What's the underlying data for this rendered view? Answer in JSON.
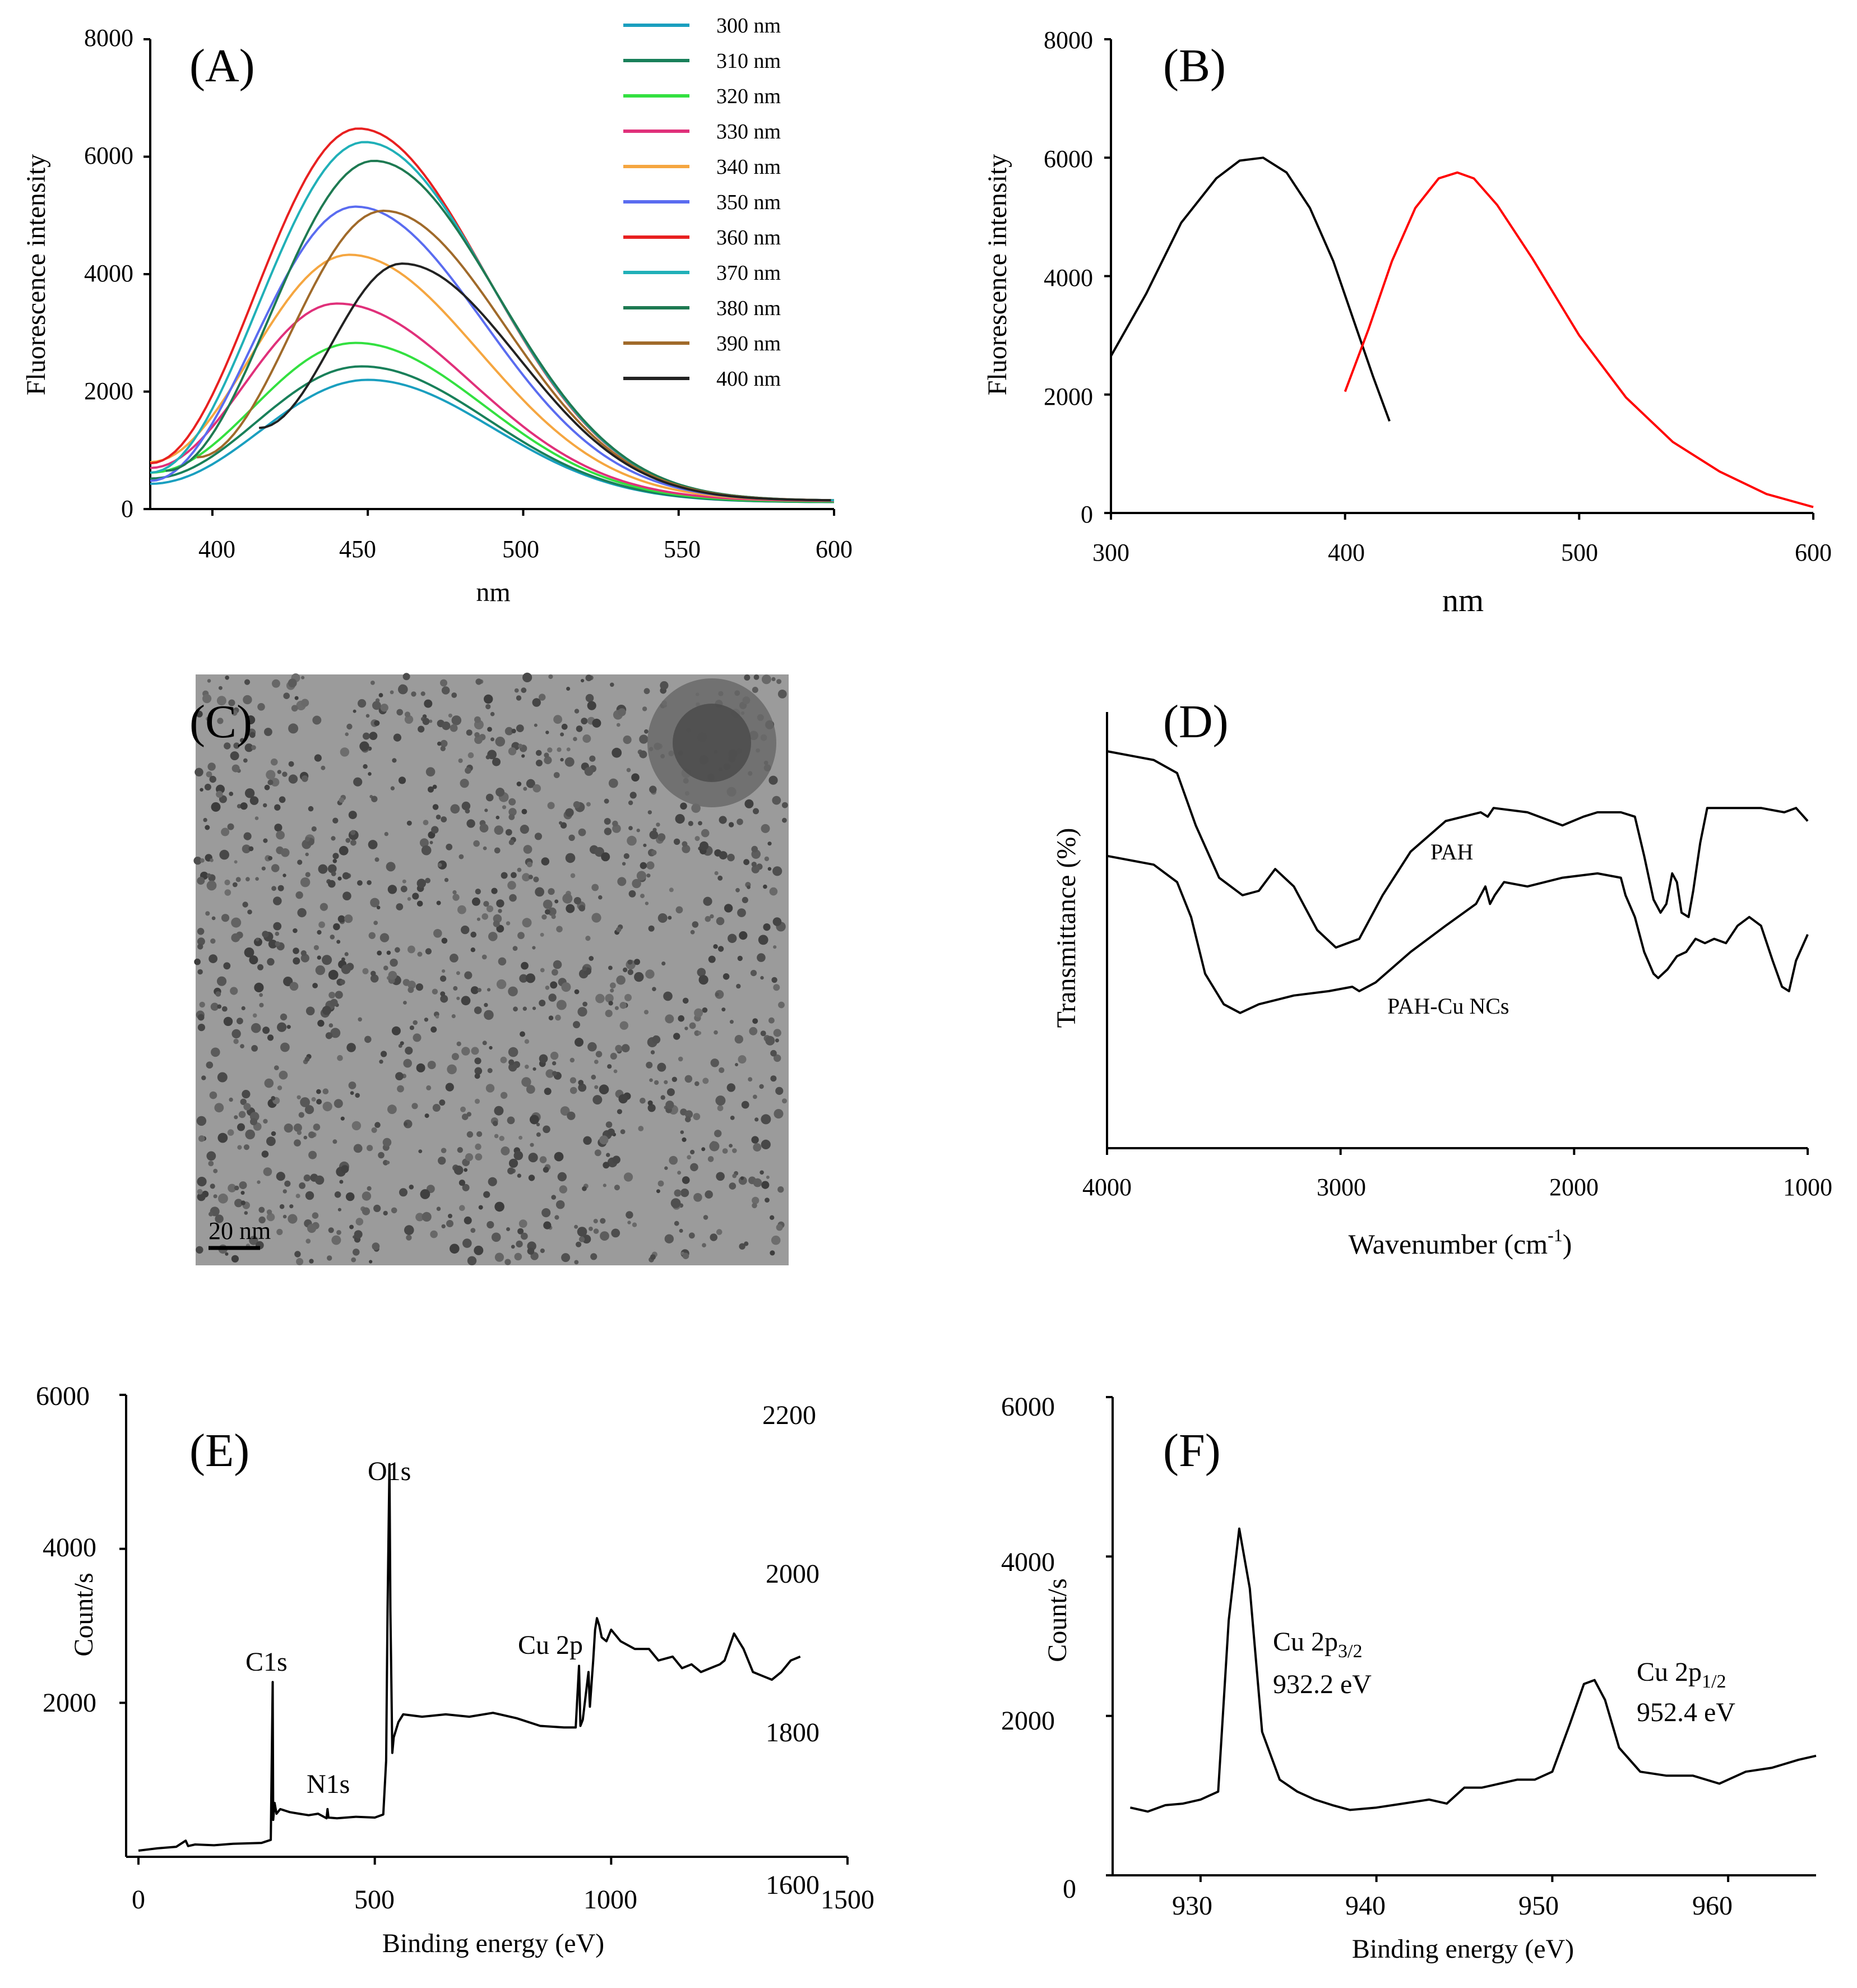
{
  "chart_data": [
    {
      "panel": "A",
      "type": "line",
      "xlabel": "nm",
      "ylabel": "Fluorescence intensity",
      "xlim": [
        380,
        600
      ],
      "ylim": [
        0,
        8000
      ],
      "x_ticks": [
        "400",
        "450",
        "500",
        "550",
        "600"
      ],
      "y_ticks": [
        "0",
        "2000",
        "4000",
        "6000",
        "8000"
      ],
      "legend_position": "top-right",
      "series": [
        {
          "name": "300 nm",
          "color": "#1a9fbf",
          "peak_x": 450,
          "peak_y": 2200,
          "start_x": 380,
          "start_y": 430,
          "end_y": 120
        },
        {
          "name": "310 nm",
          "color": "#19805a",
          "peak_x": 448,
          "peak_y": 2430,
          "start_x": 380,
          "start_y": 520,
          "end_y": 120
        },
        {
          "name": "320 nm",
          "color": "#33e040",
          "peak_x": 446,
          "peak_y": 2830,
          "start_x": 380,
          "start_y": 620,
          "end_y": 130
        },
        {
          "name": "330 nm",
          "color": "#e0307a",
          "peak_x": 440,
          "peak_y": 3500,
          "start_x": 380,
          "start_y": 700,
          "end_y": 140
        },
        {
          "name": "340 nm",
          "color": "#f5a640",
          "peak_x": 444,
          "peak_y": 4330,
          "start_x": 380,
          "start_y": 800,
          "end_y": 150
        },
        {
          "name": "350 nm",
          "color": "#5a6cf0",
          "peak_x": 446,
          "peak_y": 5150,
          "start_x": 380,
          "start_y": 480,
          "end_y": 150
        },
        {
          "name": "360 nm",
          "color": "#e82020",
          "peak_x": 447,
          "peak_y": 6480,
          "start_x": 380,
          "start_y": 780,
          "end_y": 150
        },
        {
          "name": "370 nm",
          "color": "#20b0b8",
          "peak_x": 449,
          "peak_y": 6250,
          "start_x": 380,
          "start_y": 620,
          "end_y": 150
        },
        {
          "name": "380 nm",
          "color": "#1e7a52",
          "peak_x": 452,
          "peak_y": 5930,
          "start_x": 385,
          "start_y": 650,
          "end_y": 150
        },
        {
          "name": "390 nm",
          "color": "#a06a2a",
          "peak_x": 455,
          "peak_y": 5080,
          "start_x": 395,
          "start_y": 880,
          "end_y": 150
        },
        {
          "name": "400 nm",
          "color": "#222222",
          "peak_x": 461,
          "peak_y": 4180,
          "start_x": 415,
          "start_y": 1380,
          "end_y": 150
        }
      ]
    },
    {
      "panel": "B",
      "type": "line",
      "xlabel": "nm",
      "ylabel": "Fluorescence intensity",
      "xlim": [
        300,
        600
      ],
      "ylim": [
        0,
        8000
      ],
      "x_ticks": [
        "300",
        "400",
        "500",
        "600"
      ],
      "y_ticks": [
        "0",
        "2000",
        "4000",
        "6000",
        "8000"
      ],
      "series": [
        {
          "color": "#000000",
          "x": [
            300,
            315,
            330,
            345,
            355,
            365,
            375,
            385,
            395,
            405,
            412,
            419
          ],
          "y": [
            2650,
            3700,
            4900,
            5650,
            5950,
            6000,
            5750,
            5150,
            4250,
            3100,
            2300,
            1550
          ]
        },
        {
          "color": "#ff0000",
          "x": [
            400,
            410,
            420,
            430,
            440,
            448,
            455,
            465,
            480,
            500,
            520,
            540,
            560,
            580,
            600
          ],
          "y": [
            2050,
            3100,
            4250,
            5150,
            5650,
            5750,
            5650,
            5200,
            4300,
            3000,
            1950,
            1200,
            700,
            320,
            100
          ]
        }
      ]
    },
    {
      "panel": "D",
      "type": "line",
      "xlabel": "Wavenumber (cm-1)",
      "ylabel": "Transmittance (%)",
      "x_reversed": true,
      "xlim": [
        1000,
        4000
      ],
      "ylim": [
        0,
        100
      ],
      "x_ticks": [
        "4000",
        "3000",
        "2000",
        "1000"
      ],
      "annotations": [
        "PAH",
        "PAH-Cu NCs"
      ],
      "series": [
        {
          "name": "PAH",
          "x": [
            4000,
            3800,
            3700,
            3620,
            3520,
            3420,
            3350,
            3280,
            3200,
            3100,
            3020,
            2920,
            2820,
            2700,
            2550,
            2400,
            2370,
            2345,
            2200,
            2050,
            1960,
            1900,
            1800,
            1740,
            1700,
            1660,
            1630,
            1605,
            1580,
            1560,
            1540,
            1510,
            1490,
            1460,
            1430,
            1300,
            1200,
            1100,
            1050,
            1000
          ],
          "y": [
            91,
            89,
            86,
            74,
            62,
            58,
            59,
            64,
            60,
            50,
            46,
            48,
            58,
            68,
            75,
            77,
            76,
            78,
            77,
            74,
            76,
            77,
            77,
            76,
            67,
            57,
            54,
            56,
            63,
            61,
            54,
            53,
            59,
            70,
            78,
            78,
            78,
            77,
            78,
            75
          ]
        },
        {
          "name": "PAH-Cu NCs",
          "x": [
            4000,
            3800,
            3700,
            3640,
            3580,
            3500,
            3430,
            3350,
            3200,
            3050,
            2950,
            2920,
            2850,
            2700,
            2550,
            2420,
            2380,
            2360,
            2340,
            2300,
            2200,
            2050,
            1900,
            1800,
            1780,
            1740,
            1700,
            1660,
            1640,
            1600,
            1560,
            1520,
            1480,
            1440,
            1400,
            1350,
            1300,
            1250,
            1200,
            1150,
            1110,
            1080,
            1050,
            1000
          ],
          "y": [
            67,
            65,
            61,
            53,
            40,
            33,
            31,
            33,
            35,
            36,
            37,
            36,
            38,
            45,
            51,
            56,
            60,
            56,
            58,
            61,
            60,
            62,
            63,
            62,
            58,
            53,
            45,
            40,
            39,
            41,
            44,
            45,
            48,
            47,
            48,
            47,
            51,
            53,
            51,
            43,
            37,
            36,
            43,
            49
          ]
        }
      ]
    },
    {
      "panel": "E",
      "type": "line",
      "xlabel": "Binding energy (eV)",
      "ylabel": "Count/s",
      "xlim": [
        0,
        1500
      ],
      "ylim": [
        0,
        6000
      ],
      "x_ticks": [
        "0",
        "500",
        "1000",
        "1500"
      ],
      "y_ticks": [
        "2000",
        "4000",
        "6000"
      ],
      "secondary_y_ticks": [
        "2200",
        "2000",
        "1800",
        "1600"
      ],
      "annotations": [
        "C1s",
        "N1s",
        "O1s",
        "Cu 2p"
      ],
      "series": [
        {
          "x": [
            0,
            40,
            80,
            100,
            105,
            120,
            160,
            200,
            260,
            280,
            284,
            285,
            288,
            292,
            300,
            320,
            340,
            360,
            380,
            398,
            400,
            402,
            420,
            460,
            500,
            518,
            524,
            527,
            531,
            533,
            537,
            540,
            550,
            560,
            600,
            650,
            700,
            750,
            800,
            850,
            900,
            925,
            932,
            935,
            940,
            952,
            955,
            962,
            966,
            970,
            975,
            980,
            990,
            1000,
            1020,
            1050,
            1080,
            1100,
            1130,
            1150,
            1170,
            1190,
            1210,
            1230,
            1240,
            1260,
            1280,
            1300,
            1320,
            1340,
            1360,
            1380,
            1400
          ],
          "y": [
            80,
            110,
            130,
            210,
            140,
            160,
            150,
            170,
            180,
            220,
            2270,
            480,
            700,
            560,
            620,
            580,
            560,
            540,
            560,
            500,
            620,
            510,
            500,
            520,
            510,
            550,
            1250,
            3200,
            5100,
            3200,
            1350,
            1550,
            1750,
            1850,
            1820,
            1850,
            1820,
            1870,
            1800,
            1700,
            1680,
            1680,
            2480,
            1700,
            1780,
            2400,
            1950,
            2550,
            2950,
            3100,
            3000,
            2850,
            2800,
            2950,
            2800,
            2700,
            2700,
            2550,
            2600,
            2450,
            2500,
            2400,
            2450,
            2500,
            2550,
            2900,
            2700,
            2400,
            2350,
            2300,
            2400,
            2550,
            2600
          ]
        }
      ]
    },
    {
      "panel": "F",
      "type": "line",
      "xlabel": "Binding energy (eV)",
      "ylabel": "Count/s",
      "xlim": [
        925,
        965
      ],
      "ylim": [
        0,
        6000
      ],
      "x_ticks": [
        "930",
        "940",
        "950",
        "960"
      ],
      "y_ticks": [
        "0",
        "2000",
        "4000",
        "6000"
      ],
      "annotations": [
        "Cu 2p3/2",
        "932.2 eV",
        "Cu 2p1/2",
        "952.4 eV"
      ],
      "series": [
        {
          "x": [
            926,
            927,
            928,
            929,
            930,
            931,
            931.6,
            932.2,
            932.8,
            933.5,
            934.5,
            935.5,
            936.5,
            937.5,
            938.5,
            940,
            941.5,
            943,
            944,
            945,
            946,
            947,
            948,
            949,
            950,
            951,
            951.8,
            952.4,
            953,
            953.8,
            955,
            956.5,
            958,
            959.5,
            961,
            962.5,
            964,
            965
          ],
          "y": [
            850,
            800,
            880,
            900,
            950,
            1050,
            3200,
            4350,
            3600,
            1800,
            1200,
            1050,
            950,
            880,
            820,
            850,
            900,
            950,
            900,
            1100,
            1100,
            1150,
            1200,
            1200,
            1300,
            1900,
            2400,
            2450,
            2200,
            1600,
            1300,
            1250,
            1250,
            1150,
            1300,
            1350,
            1450,
            1500
          ]
        }
      ]
    }
  ],
  "panels": {
    "a": {
      "label": "(A)",
      "ylabel": "Fluorescence intensity",
      "xlabel": "nm",
      "y_ticks": [
        "0",
        "2000",
        "4000",
        "6000",
        "8000"
      ],
      "x_ticks": [
        "400",
        "450",
        "500",
        "550",
        "600"
      ],
      "legend": [
        "300 nm",
        "310 nm",
        "320 nm",
        "330 nm",
        "340 nm",
        "350 nm",
        "360 nm",
        "370 nm",
        "380 nm",
        "390 nm",
        "400 nm"
      ]
    },
    "b": {
      "label": "(B)",
      "ylabel": "Fluorescence intensity",
      "xlabel": "nm",
      "y_ticks": [
        "0",
        "2000",
        "4000",
        "6000",
        "8000"
      ],
      "x_ticks": [
        "300",
        "400",
        "500",
        "600"
      ]
    },
    "c": {
      "label": "(C)",
      "scale_bar": "20 nm"
    },
    "d": {
      "label": "(D)",
      "ylabel": "Transmittance (%)",
      "xlabel_main": "Wavenumber (cm",
      "xlabel_sup": "-1",
      "xlabel_end": ")",
      "x_ticks": [
        "4000",
        "3000",
        "2000",
        "1000"
      ],
      "anno_pah": "PAH",
      "anno_pahcu": "PAH-Cu NCs"
    },
    "e": {
      "label": "(E)",
      "ylabel": "Count/s",
      "xlabel": "Binding energy (eV)",
      "y_ticks": [
        "2000",
        "4000",
        "6000"
      ],
      "y2_ticks": [
        "2200",
        "2000",
        "1800",
        "1600"
      ],
      "x_ticks": [
        "0",
        "500",
        "1000",
        "1500"
      ],
      "peaks": [
        "C1s",
        "N1s",
        "O1s",
        "Cu 2p"
      ]
    },
    "f": {
      "label": "(F)",
      "ylabel": "Count/s",
      "xlabel": "Binding energy (eV)",
      "y_ticks": [
        "0",
        "2000",
        "4000",
        "6000"
      ],
      "x_ticks": [
        "930",
        "940",
        "950",
        "960"
      ],
      "peak1_name": "Cu 2p",
      "peak1_sub": "3/2",
      "peak1_value": "932.2 eV",
      "peak2_name": "Cu 2p",
      "peak2_sub": "1/2",
      "peak2_value": "952.4 eV"
    }
  }
}
